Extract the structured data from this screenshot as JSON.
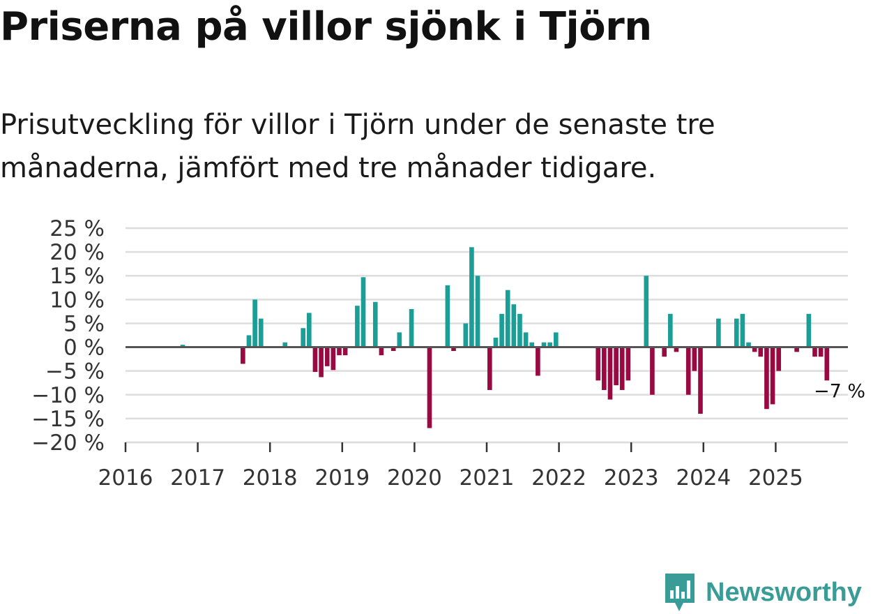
{
  "header": {
    "title": "Priserna på villor sjönk i Tjörn",
    "subtitle": "Prisutveckling för villor i Tjörn under de senaste tre månaderna, jämfört med tre månader tidigare."
  },
  "brand": {
    "name": "Newsworthy",
    "color": "#3a9c96"
  },
  "chart_data": {
    "type": "bar",
    "title": "Priserna på villor sjönk i Tjörn",
    "xlabel": "",
    "ylabel": "",
    "ylim": [
      -20,
      25
    ],
    "y_ticks": [
      25,
      20,
      15,
      10,
      5,
      0,
      -5,
      -10,
      -15,
      -20
    ],
    "y_tick_labels": [
      "25 %",
      "20 %",
      "15 %",
      "10 %",
      "5 %",
      "0 %",
      "−5 %",
      "−10 %",
      "−15 %",
      "−20 %"
    ],
    "x_tick_labels": [
      "2016",
      "2017",
      "2018",
      "2019",
      "2020",
      "2021",
      "2022",
      "2023",
      "2024",
      "2025"
    ],
    "start": "2016-01",
    "end": "2026-01",
    "grid": true,
    "colors": {
      "positive": "#1a9e95",
      "negative": "#990a43",
      "grid": "#dddddd",
      "zero_line": "#555555"
    },
    "last_value_label": "−7 %",
    "series": [
      {
        "name": "Prisutveckling",
        "values": [
          [
            "2016-10",
            0.5
          ],
          [
            "2017-08",
            -3.5
          ],
          [
            "2017-09",
            2.5
          ],
          [
            "2017-10",
            10
          ],
          [
            "2017-11",
            6
          ],
          [
            "2018-03",
            1
          ],
          [
            "2018-06",
            4
          ],
          [
            "2018-07",
            7.2
          ],
          [
            "2018-08",
            -5.2
          ],
          [
            "2018-09",
            -6.3
          ],
          [
            "2018-10",
            -4
          ],
          [
            "2018-11",
            -4.8
          ],
          [
            "2018-12",
            -1.7
          ],
          [
            "2019-01",
            -1.7
          ],
          [
            "2019-03",
            8.7
          ],
          [
            "2019-04",
            14.7
          ],
          [
            "2019-06",
            9.5
          ],
          [
            "2019-07",
            -1.7
          ],
          [
            "2019-09",
            -0.8
          ],
          [
            "2019-10",
            3.1
          ],
          [
            "2019-12",
            8
          ],
          [
            "2020-03",
            -17
          ],
          [
            "2020-06",
            13
          ],
          [
            "2020-07",
            -0.8
          ],
          [
            "2020-09",
            5
          ],
          [
            "2020-10",
            21
          ],
          [
            "2020-11",
            15
          ],
          [
            "2021-01",
            -9
          ],
          [
            "2021-02",
            2
          ],
          [
            "2021-03",
            7
          ],
          [
            "2021-04",
            12
          ],
          [
            "2021-05",
            9
          ],
          [
            "2021-06",
            7
          ],
          [
            "2021-07",
            3.1
          ],
          [
            "2021-08",
            1
          ],
          [
            "2021-09",
            -6
          ],
          [
            "2021-10",
            1
          ],
          [
            "2021-11",
            1
          ],
          [
            "2021-12",
            3.1
          ],
          [
            "2022-07",
            -7
          ],
          [
            "2022-08",
            -9
          ],
          [
            "2022-09",
            -11
          ],
          [
            "2022-10",
            -8
          ],
          [
            "2022-11",
            -9
          ],
          [
            "2022-12",
            -7
          ],
          [
            "2023-03",
            15
          ],
          [
            "2023-04",
            -10
          ],
          [
            "2023-06",
            -2
          ],
          [
            "2023-07",
            7
          ],
          [
            "2023-08",
            -1
          ],
          [
            "2023-10",
            -10
          ],
          [
            "2023-11",
            -5
          ],
          [
            "2023-12",
            -14
          ],
          [
            "2024-03",
            6
          ],
          [
            "2024-06",
            6
          ],
          [
            "2024-07",
            7
          ],
          [
            "2024-08",
            1
          ],
          [
            "2024-09",
            -1
          ],
          [
            "2024-10",
            -2
          ],
          [
            "2024-11",
            -13
          ],
          [
            "2024-12",
            -12
          ],
          [
            "2025-01",
            -5
          ],
          [
            "2025-04",
            -1
          ],
          [
            "2025-06",
            7
          ],
          [
            "2025-07",
            -2
          ],
          [
            "2025-08",
            -2
          ],
          [
            "2025-09",
            -7
          ]
        ]
      }
    ]
  }
}
